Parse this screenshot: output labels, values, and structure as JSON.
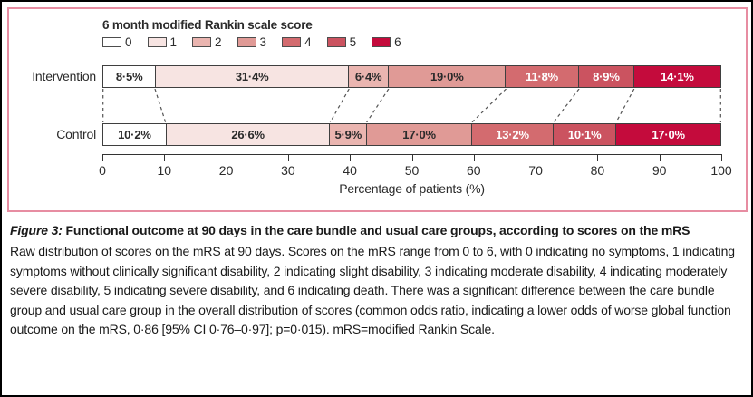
{
  "colors": {
    "panel_border": "#e78da2",
    "outer_border": "#000000",
    "segment_border": "#3f3f3f",
    "dashed_line": "#555555",
    "axis": "#333333"
  },
  "chart_data": {
    "type": "bar",
    "orientation": "horizontal-stacked",
    "legend_title": "6 month modified Rankin scale score",
    "legend_position": "top-left",
    "categories": [
      "0",
      "1",
      "2",
      "3",
      "4",
      "5",
      "6"
    ],
    "category_colors": [
      "#ffffff",
      "#f7e4e2",
      "#eab5b0",
      "#e09a96",
      "#d36b6f",
      "#cb5360",
      "#c40b3c"
    ],
    "category_text_colors": [
      "#2b2b2b",
      "#2b2b2b",
      "#2b2b2b",
      "#2b2b2b",
      "#ffffff",
      "#ffffff",
      "#ffffff"
    ],
    "series": [
      {
        "name": "Intervention",
        "values": [
          8.5,
          31.4,
          6.4,
          19.0,
          11.8,
          8.9,
          14.1
        ],
        "labels": [
          "8·5%",
          "31·4%",
          "6·4%",
          "19·0%",
          "11·8%",
          "8·9%",
          "14·1%"
        ]
      },
      {
        "name": "Control",
        "values": [
          10.2,
          26.6,
          5.9,
          17.0,
          13.2,
          10.1,
          17.0
        ],
        "labels": [
          "10·2%",
          "26·6%",
          "5·9%",
          "17·0%",
          "13·2%",
          "10·1%",
          "17·0%"
        ]
      }
    ],
    "xlabel": "Percentage of patients (%)",
    "xlim": [
      0,
      100
    ],
    "x_ticks": [
      0,
      10,
      20,
      30,
      40,
      50,
      60,
      70,
      80,
      90,
      100
    ],
    "grid": false,
    "connectors": "dashed lines join cumulative segment boundaries of the two bars, including 0% and 100% edges"
  },
  "caption": {
    "figure_label": "Figure 3:",
    "title": "Functional outcome at 90 days in the care bundle and usual care groups, according to scores on the mRS",
    "body": "Raw distribution of scores on the mRS at 90 days. Scores on the mRS range from 0 to 6, with 0 indicating no symptoms, 1 indicating symptoms without clinically significant disability, 2 indicating slight disability, 3 indicating moderate disability, 4 indicating moderately severe disability, 5 indicating severe disability, and 6 indicating death. There was a significant difference between the care bundle group and usual care group in the overall distribution of scores (common odds ratio, indicating a lower odds of worse global function outcome on the mRS, 0·86 [95% CI 0·76–0·97]; p=0·015). mRS=modified Rankin Scale."
  }
}
